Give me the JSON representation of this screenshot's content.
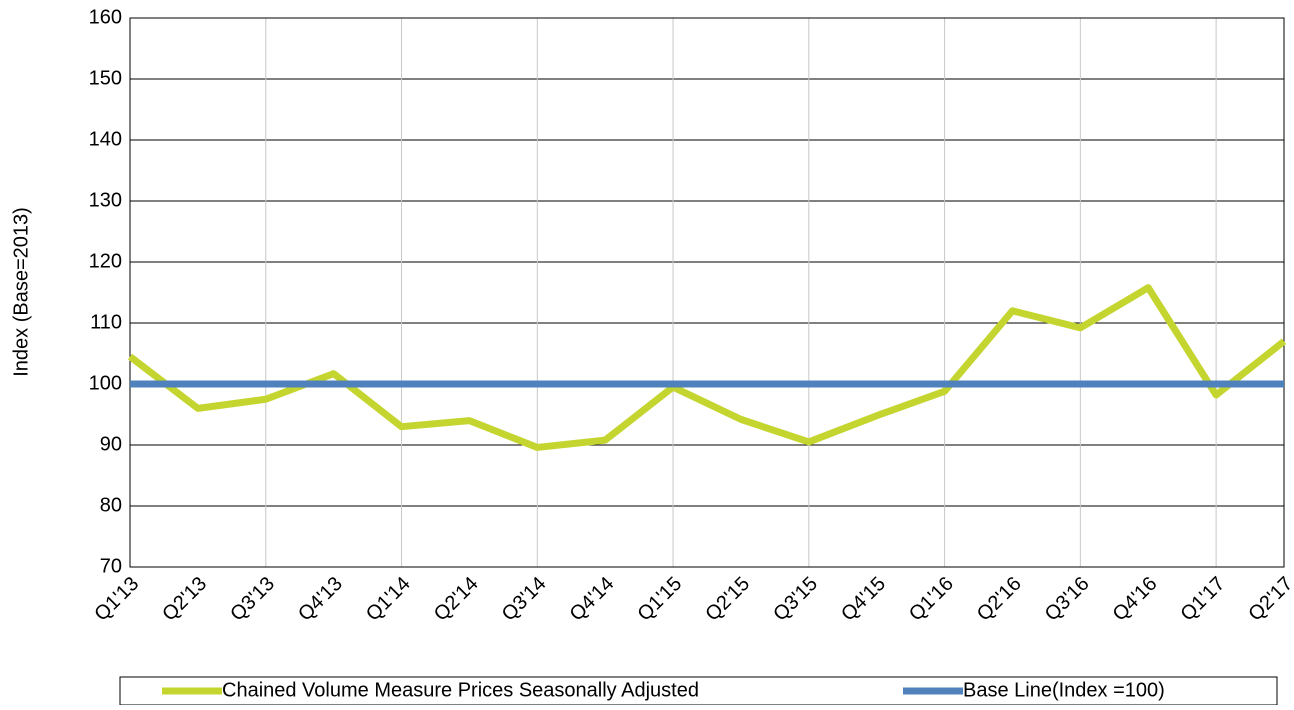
{
  "chart_data": {
    "type": "line",
    "y_label": "Index (Base=2013)",
    "categories": [
      "Q1'13",
      "Q2'13",
      "Q3'13",
      "Q4'13",
      "Q1'14",
      "Q2'14",
      "Q3'14",
      "Q4'14",
      "Q1'15",
      "Q2'15",
      "Q3'15",
      "Q4'15",
      "Q1'16",
      "Q2'16",
      "Q3'16",
      "Q4'16",
      "Q1'17",
      "Q2'17"
    ],
    "series": [
      {
        "name": "Chained Volume Measure Prices Seasonally Adjusted",
        "color": "#c5d52f",
        "values": [
          104.5,
          96,
          97.5,
          101.7,
          93,
          94,
          89.6,
          90.8,
          99.5,
          94.2,
          90.5,
          94.8,
          98.8,
          112,
          109.2,
          115.8,
          98.2,
          107
        ]
      },
      {
        "name": "Base Line(Index =100)",
        "color": "#4f81bd",
        "values": [
          100,
          100,
          100,
          100,
          100,
          100,
          100,
          100,
          100,
          100,
          100,
          100,
          100,
          100,
          100,
          100,
          100,
          100
        ]
      }
    ],
    "ylim": [
      70,
      160
    ],
    "yticks": [
      70,
      80,
      90,
      100,
      110,
      120,
      130,
      140,
      150,
      160
    ],
    "grid": true,
    "legend": "bottom"
  }
}
